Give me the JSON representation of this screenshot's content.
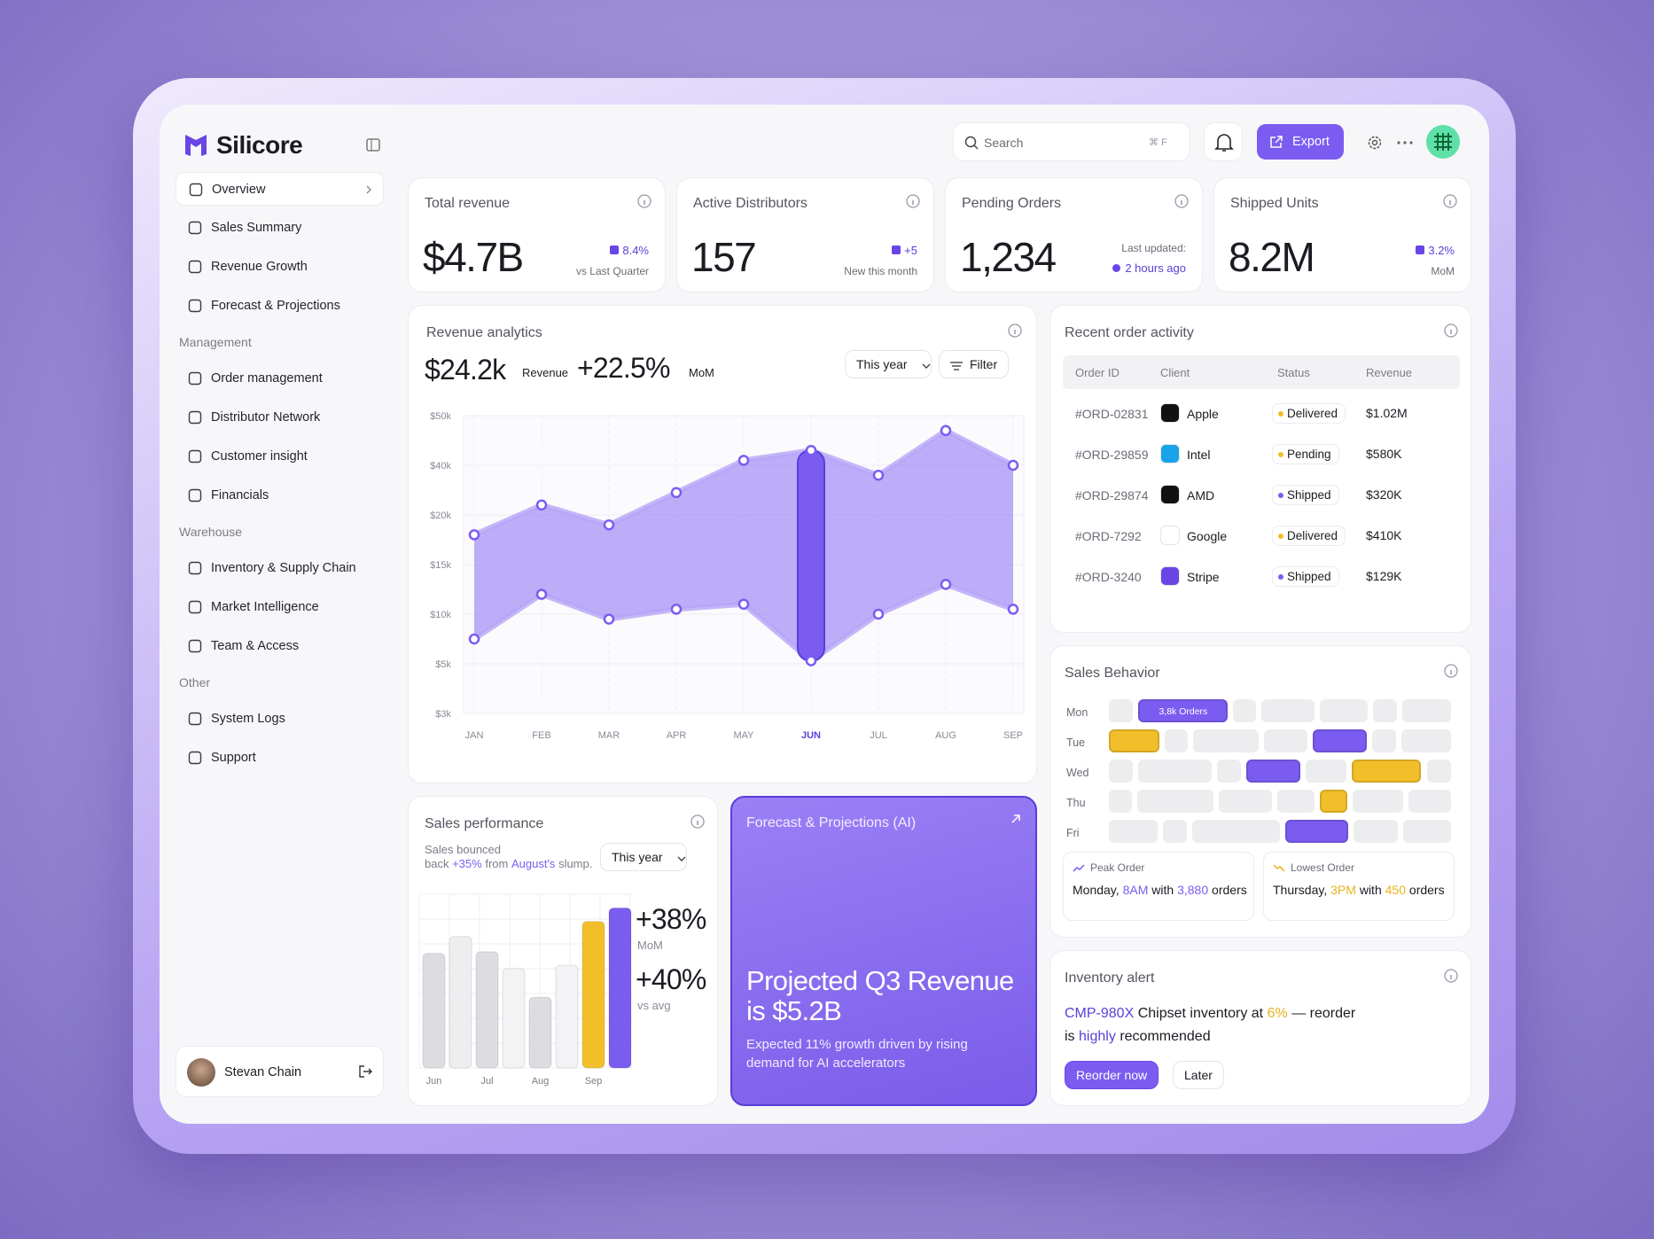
{
  "sidebar": {
    "brand": "Silicore",
    "items": [
      "Overview",
      "Sales Summary",
      "Revenue Growth",
      "Forecast & Projections"
    ],
    "groups": [
      {
        "title": "Management",
        "items": [
          "Order management",
          "Distributor Network",
          "Customer insight",
          "Financials"
        ]
      },
      {
        "title": "Warehouse",
        "items": [
          "Inventory & Supply Chain",
          "Market Intelligence",
          "Team & Access"
        ]
      },
      {
        "title": "Other",
        "items": [
          "System Logs",
          "Support"
        ]
      }
    ],
    "user": "Stevan Chain"
  },
  "topbar": {
    "search": "Search",
    "shortcut": "⌘ F",
    "export": "Export"
  },
  "kpis": [
    {
      "title": "Total revenue",
      "value": "$4.7B",
      "change": "8.4%",
      "note": "vs Last Quarter"
    },
    {
      "title": "Active Distributors",
      "value": "157",
      "change": "+5",
      "note": "New this month"
    },
    {
      "title": "Pending Orders",
      "value": "1,234",
      "note": "Last updated:",
      "updated": "2 hours ago"
    },
    {
      "title": "Shipped Units",
      "value": "8.2M",
      "change": "3.2%",
      "note": "MoM"
    }
  ],
  "revenue": {
    "title": "Revenue analytics",
    "value": "$24.2k",
    "value_label": "Revenue",
    "growth": "+22.5%",
    "growth_label": "MoM",
    "period": "This year",
    "filter": "Filter",
    "months": [
      "JAN",
      "FEB",
      "MAR",
      "APR",
      "MAY",
      "JUN",
      "JUL",
      "AUG",
      "SEP"
    ],
    "high": [
      18000,
      24000,
      19000,
      29000,
      41000,
      43000,
      36000,
      47000,
      40000
    ],
    "low": [
      7500,
      12000,
      9500,
      10500,
      11000,
      5300,
      10000,
      13000,
      10500
    ],
    "highlight": 5,
    "color": "#8a6cf3",
    "ylim": [
      3000,
      50000
    ],
    "yticks": [
      {
        "value": 3000,
        "label": "$3k"
      },
      {
        "value": 5000,
        "label": "$5k"
      },
      {
        "value": 10000,
        "label": "$10k"
      },
      {
        "value": 15000,
        "label": "$15k"
      },
      {
        "value": 20000,
        "label": "$20k"
      },
      {
        "value": 40000,
        "label": "$40k"
      },
      {
        "value": 50000,
        "label": "$50k"
      }
    ]
  },
  "orders": {
    "title": "Recent order activity",
    "columns": [
      "Order ID",
      "Client",
      "Status",
      "Revenue"
    ],
    "rows": [
      {
        "id": "#ORD-02831",
        "client": "Apple",
        "status": "Delivered",
        "status_color": "#f2bf2a",
        "revenue": "$1.02M"
      },
      {
        "id": "#ORD-29859",
        "client": "Intel",
        "status": "Pending",
        "status_color": "#f2bf2a",
        "revenue": "$580K"
      },
      {
        "id": "#ORD-29874",
        "client": "AMD",
        "status": "Shipped",
        "status_color": "#7b5cf0",
        "revenue": "$320K"
      },
      {
        "id": "#ORD-7292",
        "client": "Google",
        "status": "Delivered",
        "status_color": "#f2bf2a",
        "revenue": "$410K"
      },
      {
        "id": "#ORD-3240",
        "client": "Stripe",
        "status": "Shipped",
        "status_color": "#7b5cf0",
        "revenue": "$129K"
      }
    ]
  },
  "behavior": {
    "title": "Sales Behavior",
    "days": [
      "Mon",
      "Tue",
      "Wed",
      "Thu",
      "Fri"
    ],
    "badge": "3,8k Orders",
    "peak": {
      "title": "Peak Order",
      "text": [
        "Monday,",
        {
          "text": "8AM",
          "color": "#7b5cf0"
        },
        "with",
        {
          "text": "3,880",
          "color": "#7b5cf0"
        },
        "orders"
      ]
    },
    "lowest": {
      "title": "Lowest Order",
      "text": [
        "Thursday,",
        {
          "text": "3PM",
          "color": "#e8b21c"
        },
        "with",
        {
          "text": "450",
          "color": "#e8b21c"
        },
        "orders"
      ]
    }
  },
  "performance": {
    "title": "Sales performance",
    "note": [
      "Sales bounced back",
      {
        "text": "+35%",
        "color": "#7b5cf0"
      },
      "from",
      {
        "text": "August's",
        "color": "#7b5cf0"
      },
      "slump."
    ],
    "period": "This year",
    "categories": [
      "Jun",
      null,
      "Jul",
      null,
      "Aug",
      null,
      "Sep",
      null
    ],
    "values": [
      68,
      78,
      69,
      59,
      42,
      61,
      87,
      95
    ],
    "colors": [
      "#dcdce1",
      "#eeeef1",
      "#dcdce1",
      "#f3f3f5",
      "#dcdce1",
      "#f3f3f5",
      "#f2bf2a",
      "#7b5cf0"
    ],
    "stats": [
      {
        "value": "+38%",
        "label": "MoM"
      },
      {
        "value": "+40%",
        "label": "vs avg"
      }
    ]
  },
  "forecast": {
    "title": "Forecast & Projections (AI)",
    "headline": "Projected Q3 Revenue is $5.2B",
    "text": "Expected 11% growth driven by rising demand for AI accelerators"
  },
  "inventory": {
    "title": "Inventory alert",
    "text": [
      {
        "text": "CMP-980X",
        "color": "#5b3fd6"
      },
      "Chipset inventory at",
      {
        "text": "6%",
        "color": "#e8b21c"
      },
      "— reorder is",
      {
        "text": "highly",
        "color": "#5b3fd6"
      },
      "recommended"
    ],
    "actions": [
      "Reorder now",
      "Later"
    ]
  }
}
